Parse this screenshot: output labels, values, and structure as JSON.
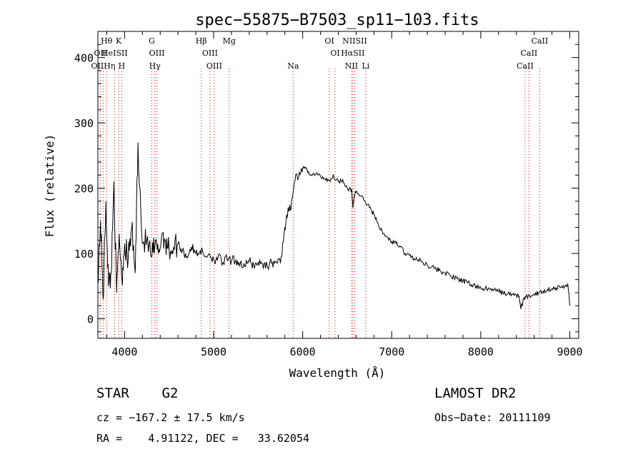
{
  "chart_data": {
    "type": "line",
    "title": "spec−55875−B7503_sp11−103.fits",
    "xlabel": "Wavelength (Å)",
    "ylabel": "Flux (relative)",
    "xlim": [
      3700,
      9100
    ],
    "ylim": [
      -30,
      440
    ],
    "xticks": [
      4000,
      5000,
      6000,
      7000,
      8000,
      9000
    ],
    "yticks": [
      0,
      100,
      200,
      300,
      400
    ],
    "line_color": "#000000",
    "marker_color": "#cc0000",
    "series": [
      {
        "values_x": [
          3700,
          3730,
          3760,
          3790,
          3820,
          3850,
          3880,
          3910,
          3940,
          3970,
          4000,
          4040,
          4080,
          4120,
          4150,
          4200,
          4250,
          4300,
          4340,
          4380,
          4420,
          4460,
          4500,
          4550,
          4600,
          4650,
          4700,
          4750,
          4800,
          4850,
          4900,
          4950,
          5000,
          5050,
          5100,
          5150,
          5200,
          5250,
          5300,
          5350,
          5400,
          5450,
          5500,
          5550,
          5600,
          5650,
          5700,
          5750,
          5800,
          5830,
          5860,
          5890,
          5920,
          5950,
          5980,
          6000,
          6050,
          6100,
          6150,
          6200,
          6250,
          6300,
          6350,
          6400,
          6450,
          6500,
          6550,
          6563,
          6580,
          6600,
          6650,
          6700,
          6750,
          6800,
          6850,
          6900,
          6950,
          7000,
          7050,
          7100,
          7150,
          7200,
          7250,
          7300,
          7350,
          7400,
          7450,
          7500,
          7550,
          7600,
          7650,
          7700,
          7750,
          7800,
          7850,
          7900,
          7950,
          8000,
          8050,
          8100,
          8150,
          8200,
          8250,
          8300,
          8350,
          8400,
          8430,
          8450,
          8480,
          8500,
          8550,
          8600,
          8650,
          8700,
          8750,
          8800,
          8850,
          8900,
          8950,
          8980,
          9000
        ],
        "values_y": [
          60,
          150,
          30,
          180,
          50,
          70,
          210,
          40,
          130,
          60,
          115,
          90,
          140,
          70,
          270,
          115,
          120,
          95,
          110,
          100,
          130,
          120,
          105,
          110,
          115,
          105,
          95,
          110,
          100,
          105,
          95,
          100,
          90,
          95,
          85,
          92,
          88,
          90,
          85,
          80,
          88,
          82,
          86,
          84,
          82,
          85,
          88,
          85,
          140,
          160,
          170,
          190,
          220,
          215,
          225,
          230,
          228,
          220,
          222,
          218,
          215,
          212,
          218,
          210,
          213,
          200,
          198,
          170,
          190,
          195,
          188,
          180,
          170,
          160,
          145,
          130,
          125,
          118,
          115,
          110,
          100,
          97,
          92,
          90,
          87,
          82,
          80,
          76,
          73,
          70,
          67,
          63,
          60,
          58,
          55,
          52,
          50,
          47,
          46,
          45,
          44,
          42,
          40,
          38,
          37,
          36,
          35,
          15,
          30,
          32,
          35,
          38,
          40,
          42,
          45,
          46,
          47,
          48,
          50,
          52,
          20
        ]
      }
    ],
    "spectral_lines": [
      {
        "label": "Hθ",
        "wavelength": 3798,
        "row": 0
      },
      {
        "label": "K",
        "wavelength": 3934,
        "row": 0
      },
      {
        "label": "G",
        "wavelength": 4305,
        "row": 0
      },
      {
        "label": "Hβ",
        "wavelength": 4861,
        "row": 0
      },
      {
        "label": "Mg",
        "wavelength": 5175,
        "row": 0
      },
      {
        "label": "OI",
        "wavelength": 6300,
        "row": 0
      },
      {
        "label": "NIISII",
        "wavelength": 6585,
        "row": 0
      },
      {
        "label": "CaII",
        "wavelength": 8662,
        "row": 0
      },
      {
        "label": "OII",
        "wavelength": 3727,
        "row": 1
      },
      {
        "label": "HeISII",
        "wavelength": 3888,
        "row": 1
      },
      {
        "label": "OIII",
        "wavelength": 4363,
        "row": 1
      },
      {
        "label": "OIII",
        "wavelength": 4959,
        "row": 1
      },
      {
        "label": "OI",
        "wavelength": 6364,
        "row": 1
      },
      {
        "label": "HαSII",
        "wavelength": 6563,
        "row": 1
      },
      {
        "label": "CaII",
        "wavelength": 8542,
        "row": 1
      },
      {
        "label": "OIIHη",
        "wavelength": 3760,
        "row": 2
      },
      {
        "label": "H",
        "wavelength": 3968,
        "row": 2
      },
      {
        "label": "Hγ",
        "wavelength": 4340,
        "row": 2
      },
      {
        "label": "OIII",
        "wavelength": 5007,
        "row": 2
      },
      {
        "label": "Na",
        "wavelength": 5893,
        "row": 2
      },
      {
        "label": "NII",
        "wavelength": 6548,
        "row": 2
      },
      {
        "label": "Li",
        "wavelength": 6708,
        "row": 2
      },
      {
        "label": "CaII",
        "wavelength": 8498,
        "row": 2
      }
    ]
  },
  "info": {
    "object_class": "STAR    G2",
    "survey": "LAMOST DR2",
    "cz": "cz = −167.2 ± 17.5 km/s",
    "obs_date": "Obs−Date: 20111109",
    "radec": "RA =    4.91122, DEC =   33.62054"
  }
}
